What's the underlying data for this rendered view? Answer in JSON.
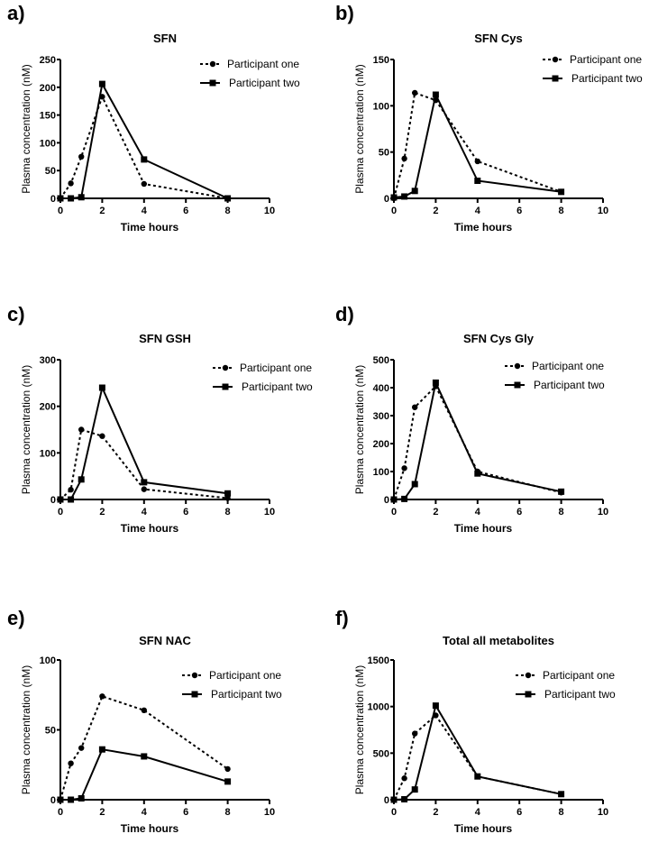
{
  "chart_data": [
    {
      "type": "line",
      "panel_label": "a)",
      "title": "SFN",
      "xlabel": "Time hours",
      "ylabel": "Plasma concentration (nM)",
      "xlim": [
        0,
        10
      ],
      "ylim": [
        0,
        250
      ],
      "xticks": [
        0,
        2,
        4,
        6,
        8,
        10
      ],
      "yticks": [
        0,
        50,
        100,
        150,
        200,
        250
      ],
      "legend": "top-right",
      "series": [
        {
          "name": "Participant one",
          "style": "dotted-circle",
          "x": [
            0,
            0.5,
            1,
            2,
            4,
            8
          ],
          "y": [
            0,
            27,
            75,
            183,
            26,
            0
          ]
        },
        {
          "name": "Participant two",
          "style": "solid-square",
          "x": [
            0,
            0.5,
            1,
            2,
            4,
            8
          ],
          "y": [
            0,
            0,
            2,
            206,
            70,
            0
          ]
        }
      ]
    },
    {
      "type": "line",
      "panel_label": "b)",
      "title": "SFN Cys",
      "xlabel": "Time hours",
      "ylabel": "Plasma concentration (nM)",
      "xlim": [
        0,
        10
      ],
      "ylim": [
        0,
        150
      ],
      "xticks": [
        0,
        2,
        4,
        6,
        8,
        10
      ],
      "yticks": [
        0,
        50,
        100,
        150
      ],
      "legend": "top-right",
      "series": [
        {
          "name": "Participant one",
          "style": "dotted-circle",
          "x": [
            0,
            0.5,
            1,
            2,
            4,
            8
          ],
          "y": [
            0,
            43,
            114,
            106,
            40,
            7
          ]
        },
        {
          "name": "Participant two",
          "style": "solid-square",
          "x": [
            0,
            0.5,
            1,
            2,
            4,
            8
          ],
          "y": [
            1,
            2,
            8,
            112,
            19,
            7
          ]
        }
      ]
    },
    {
      "type": "line",
      "panel_label": "c)",
      "title": "SFN GSH",
      "xlabel": "Time hours",
      "ylabel": "Plasma concentration (nM)",
      "xlim": [
        0,
        10
      ],
      "ylim": [
        0,
        300
      ],
      "xticks": [
        0,
        2,
        4,
        6,
        8,
        10
      ],
      "yticks": [
        0,
        100,
        200,
        300
      ],
      "legend": "top-right",
      "series": [
        {
          "name": "Participant one",
          "style": "dotted-circle",
          "x": [
            0,
            0.5,
            1,
            2,
            4,
            8
          ],
          "y": [
            0,
            21,
            150,
            136,
            22,
            3
          ]
        },
        {
          "name": "Participant two",
          "style": "solid-square",
          "x": [
            0,
            0.5,
            1,
            2,
            4,
            8
          ],
          "y": [
            0,
            0,
            43,
            240,
            37,
            13
          ]
        }
      ]
    },
    {
      "type": "line",
      "panel_label": "d)",
      "title": "SFN Cys Gly",
      "xlabel": "Time hours",
      "ylabel": "Plasma concentration (nM)",
      "xlim": [
        0,
        10
      ],
      "ylim": [
        0,
        500
      ],
      "xticks": [
        0,
        2,
        4,
        6,
        8,
        10
      ],
      "yticks": [
        0,
        100,
        200,
        300,
        400,
        500
      ],
      "legend": "top-right",
      "series": [
        {
          "name": "Participant one",
          "style": "dotted-circle",
          "x": [
            0,
            0.5,
            1,
            2,
            4,
            8
          ],
          "y": [
            0,
            112,
            330,
            405,
            100,
            25
          ]
        },
        {
          "name": "Participant two",
          "style": "solid-square",
          "x": [
            0,
            0.5,
            1,
            2,
            4,
            8
          ],
          "y": [
            0,
            2,
            55,
            418,
            93,
            28
          ]
        }
      ]
    },
    {
      "type": "line",
      "panel_label": "e)",
      "title": "SFN NAC",
      "xlabel": "Time hours",
      "ylabel": "Plasma concentration (nM)",
      "xlim": [
        0,
        10
      ],
      "ylim": [
        0,
        100
      ],
      "xticks": [
        0,
        2,
        4,
        6,
        8,
        10
      ],
      "yticks": [
        0,
        50,
        100
      ],
      "legend": "top-right",
      "series": [
        {
          "name": "Participant one",
          "style": "dotted-circle",
          "x": [
            0,
            0.5,
            1,
            2,
            4,
            8
          ],
          "y": [
            0,
            26,
            37,
            74,
            64,
            22
          ]
        },
        {
          "name": "Participant two",
          "style": "solid-square",
          "x": [
            0,
            0.5,
            1,
            2,
            4,
            8
          ],
          "y": [
            0,
            0,
            1,
            36,
            31,
            13
          ]
        }
      ]
    },
    {
      "type": "line",
      "panel_label": "f)",
      "title": "Total all metabolites",
      "xlabel": "Time hours",
      "ylabel": "Plasma concentration (nM)",
      "xlim": [
        0,
        10
      ],
      "ylim": [
        0,
        1500
      ],
      "xticks": [
        0,
        2,
        4,
        6,
        8,
        10
      ],
      "yticks": [
        0,
        500,
        1000,
        1500
      ],
      "legend": "top-right",
      "series": [
        {
          "name": "Participant one",
          "style": "dotted-circle",
          "x": [
            0,
            0.5,
            1,
            2,
            4,
            8
          ],
          "y": [
            0,
            230,
            710,
            905,
            250,
            60
          ]
        },
        {
          "name": "Participant two",
          "style": "solid-square",
          "x": [
            0,
            0.5,
            1,
            2,
            4,
            8
          ],
          "y": [
            0,
            5,
            110,
            1010,
            250,
            60
          ]
        }
      ]
    }
  ]
}
